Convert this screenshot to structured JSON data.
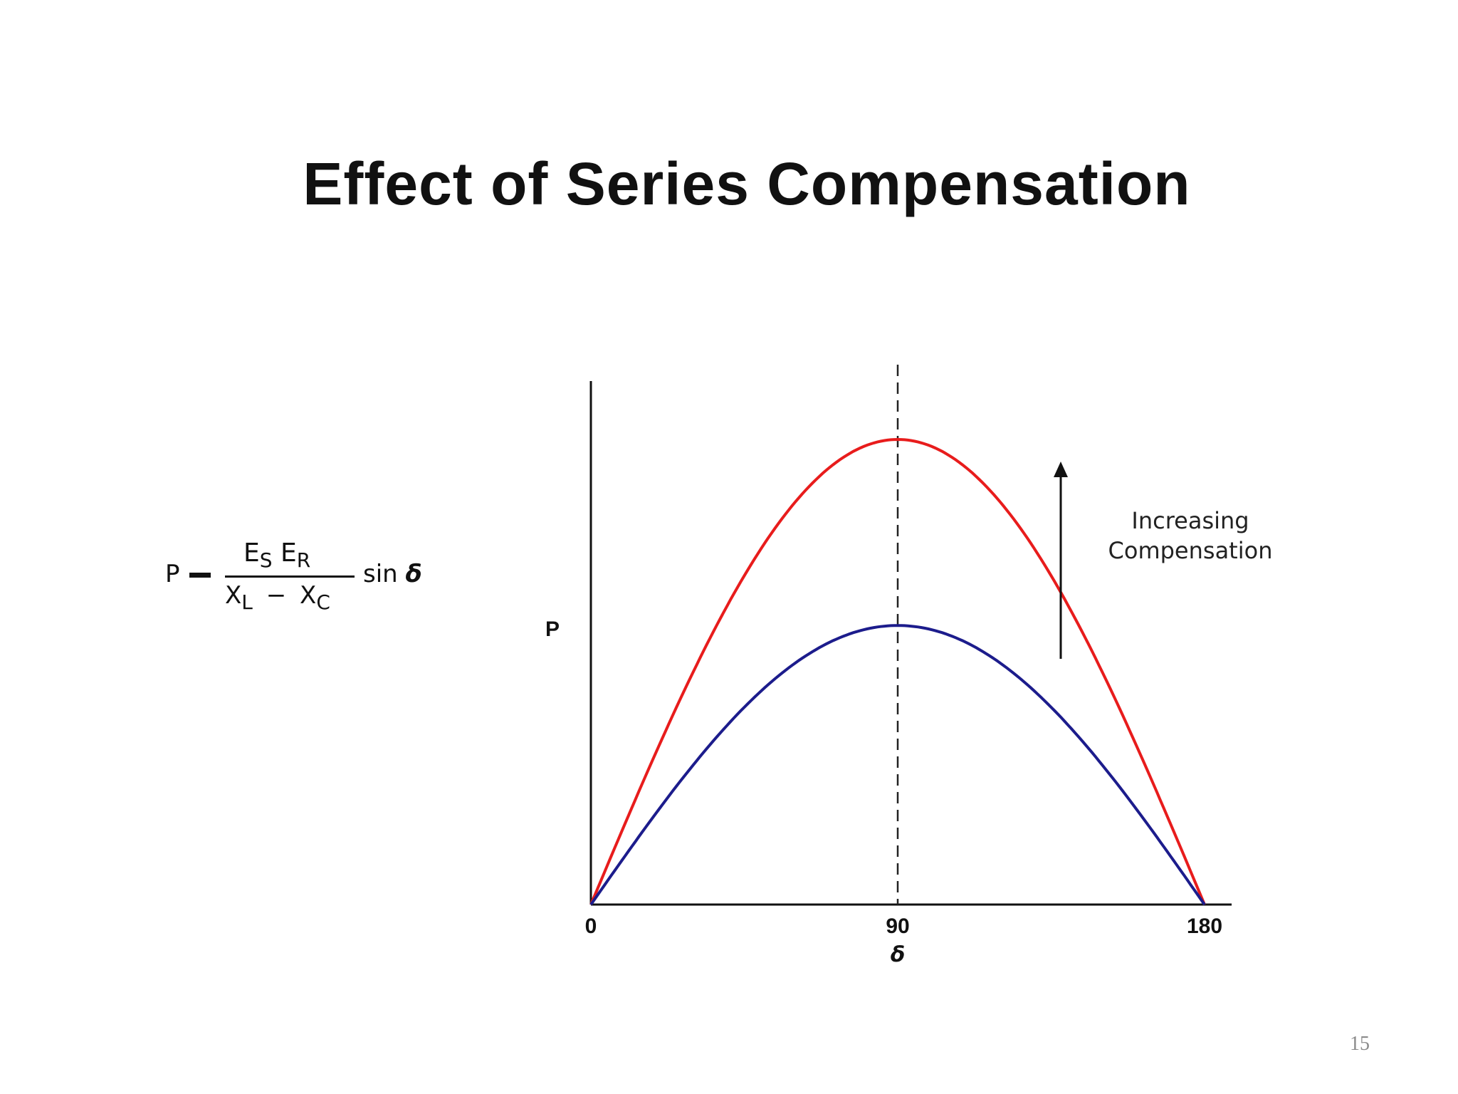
{
  "slide": {
    "title": "Effect of Series Compensation",
    "page_number": "15"
  },
  "formula": {
    "lhs": "P",
    "num_es": "E",
    "num_es_sub": "S",
    "num_er": "E",
    "num_er_sub": "R",
    "den_xl": "X",
    "den_xl_sub": "L",
    "den_minus": "−",
    "den_xc": "X",
    "den_xc_sub": "C",
    "rhs_fn": "sin",
    "rhs_var": "δ"
  },
  "chart_data": {
    "type": "line",
    "xlabel": "δ",
    "ylabel": "P",
    "xlim": [
      0,
      180
    ],
    "x_ticks": [
      "0",
      "90",
      "180"
    ],
    "ylim": [
      0,
      1.05
    ],
    "series": [
      {
        "color": "#e81c1c",
        "amplitude": 1.0,
        "x": [
          0,
          30,
          60,
          90,
          120,
          150,
          180
        ],
        "values": [
          0,
          0.5,
          0.866,
          1.0,
          0.866,
          0.5,
          0
        ]
      },
      {
        "color": "#1c1c8c",
        "amplitude": 0.6,
        "x": [
          0,
          30,
          60,
          90,
          120,
          150,
          180
        ],
        "values": [
          0,
          0.3,
          0.52,
          0.6,
          0.52,
          0.3,
          0
        ]
      }
    ],
    "reference_line": {
      "x": 90,
      "style": "dashed"
    },
    "annotation": {
      "line1": "Increasing",
      "line2": "Compensation",
      "arrow": "up"
    },
    "grid": false
  }
}
